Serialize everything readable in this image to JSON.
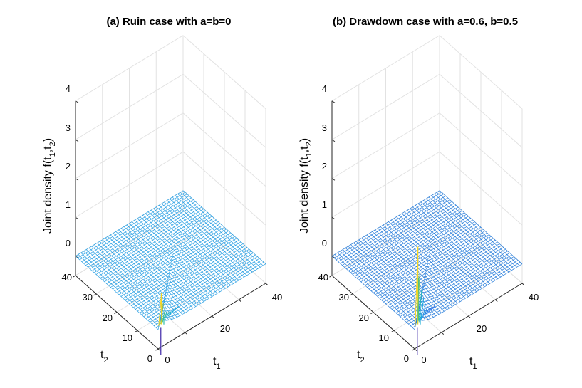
{
  "chart_data": [
    {
      "type": "surface",
      "title": "(a) Ruin case with a=b=0",
      "xlabel": "t",
      "xlabel_sub": "1",
      "ylabel": "t",
      "ylabel_sub": "2",
      "zlabel_prefix": "Joint density f(t",
      "zlabel_sub1": "1",
      "zlabel_mid": ",t",
      "zlabel_sub2": "2",
      "zlabel_suffix": ")",
      "xlim": [
        0,
        40
      ],
      "ylim": [
        0,
        40
      ],
      "zlim": [
        -0.5,
        4
      ],
      "xticks": [
        0,
        20,
        40
      ],
      "yticks": [
        0,
        10,
        20,
        30,
        40
      ],
      "zticks": [
        0,
        1,
        2,
        3,
        4
      ],
      "grid_size": 41,
      "peak_z": 0.8,
      "min_z": -0.7,
      "mesh_color": "#2aa0e4",
      "colormap": [
        "#3e26a8",
        "#2f6ff0",
        "#17a9e0",
        "#32c39a",
        "#b6bf2c",
        "#f9d61c"
      ]
    },
    {
      "type": "surface",
      "title": "(b) Drawdown case with a=0.6, b=0.5",
      "xlabel": "t",
      "xlabel_sub": "1",
      "ylabel": "t",
      "ylabel_sub": "2",
      "zlabel_prefix": "Joint density f(t",
      "zlabel_sub1": "1",
      "zlabel_mid": ",t",
      "zlabel_sub2": "2",
      "zlabel_suffix": ")",
      "xlim": [
        0,
        40
      ],
      "ylim": [
        0,
        40
      ],
      "zlim": [
        -0.5,
        4
      ],
      "xticks": [
        0,
        20,
        40
      ],
      "yticks": [
        0,
        10,
        20,
        30,
        40
      ],
      "zticks": [
        0,
        1,
        2,
        3,
        4
      ],
      "grid_size": 41,
      "peak_z": 2.0,
      "min_z": -0.7,
      "mesh_color": "#2a7fdc",
      "colormap": [
        "#3e26a8",
        "#2f6ff0",
        "#17a9e0",
        "#32c39a",
        "#b6bf2c",
        "#f9d61c"
      ]
    }
  ]
}
